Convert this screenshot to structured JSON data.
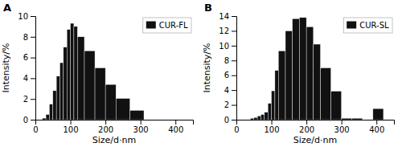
{
  "chart_data": [
    {
      "type": "histogram",
      "title": "A",
      "xlabel": "Size/d·nm",
      "ylabel": "Intensity/%",
      "xlim": [
        0,
        450
      ],
      "ylim": [
        0,
        10
      ],
      "xticks": [
        0,
        100,
        200,
        300,
        400
      ],
      "yticks": [
        0,
        2,
        4,
        6,
        8,
        10
      ],
      "legend": "upper right",
      "x_left": [
        20,
        30,
        40,
        50,
        60,
        70,
        80,
        90,
        100,
        110,
        120,
        140,
        170,
        200,
        230,
        270
      ],
      "x_right": [
        30,
        40,
        50,
        60,
        70,
        80,
        90,
        100,
        110,
        120,
        140,
        170,
        200,
        230,
        270,
        310
      ],
      "series": [
        {
          "name": "CUR-FL",
          "color": "#111111",
          "values": [
            0.15,
            0.5,
            1.5,
            2.8,
            4.2,
            5.5,
            7.0,
            8.7,
            9.3,
            9.0,
            8.0,
            6.65,
            5.0,
            3.4,
            2.05,
            0.9
          ]
        }
      ]
    },
    {
      "type": "histogram",
      "title": "B",
      "xlabel": "Size/d·nm",
      "ylabel": "Intensity/%",
      "xlim": [
        0,
        450
      ],
      "ylim": [
        0,
        14
      ],
      "xticks": [
        0,
        100,
        200,
        300,
        400
      ],
      "yticks": [
        0,
        2,
        4,
        6,
        8,
        10,
        12,
        14
      ],
      "legend": "upper right",
      "x_left": [
        40,
        50,
        60,
        70,
        80,
        90,
        100,
        110,
        120,
        140,
        160,
        180,
        200,
        220,
        240,
        270,
        300,
        330,
        390
      ],
      "x_right": [
        50,
        60,
        70,
        80,
        90,
        100,
        110,
        120,
        140,
        160,
        180,
        200,
        220,
        240,
        270,
        300,
        330,
        360,
        420
      ],
      "series": [
        {
          "name": "CUR-SL",
          "color": "#111111",
          "values": [
            0.2,
            0.3,
            0.5,
            0.7,
            1.0,
            2.2,
            3.9,
            6.65,
            9.3,
            12.0,
            13.65,
            13.8,
            12.55,
            10.2,
            7.0,
            3.85,
            0.2,
            0.2,
            1.5
          ]
        }
      ]
    }
  ]
}
